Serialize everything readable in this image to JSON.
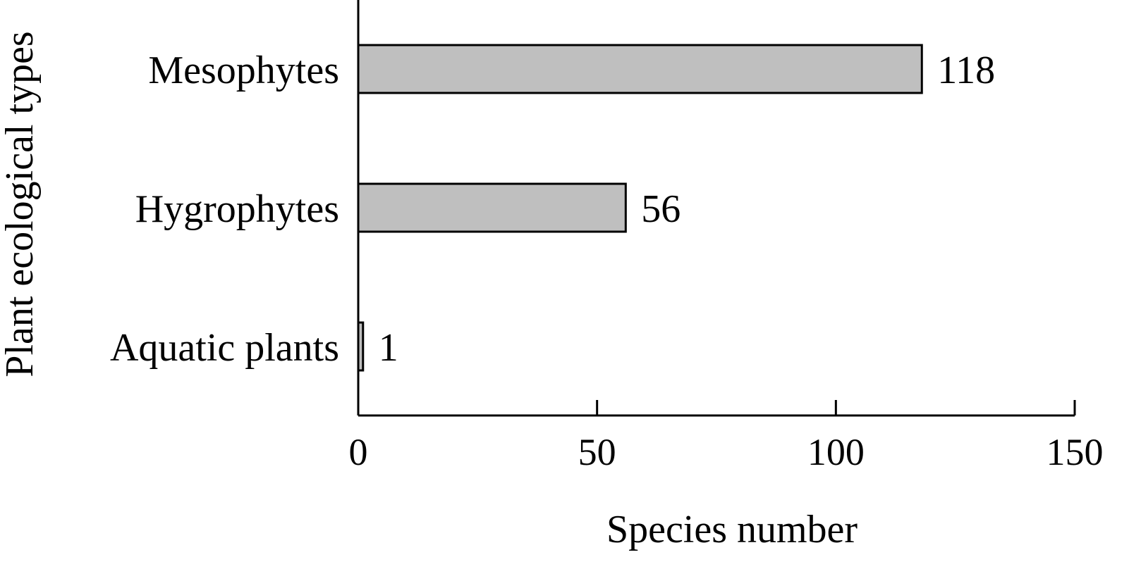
{
  "chart_data": {
    "type": "bar",
    "orientation": "horizontal",
    "categories": [
      "Mesophytes",
      "Hygrophytes",
      "Aquatic plants"
    ],
    "values": [
      118,
      56,
      1
    ],
    "value_labels": [
      "118",
      "56",
      "1"
    ],
    "xlabel": "Species number",
    "ylabel": "Plant ecological types",
    "xlim": [
      0,
      150
    ],
    "xticks": [
      0,
      50,
      100,
      150
    ],
    "xtick_labels": [
      "0",
      "50",
      "100",
      "150"
    ],
    "bar_color": "#bfbfbf",
    "bar_edge_color": "#000000",
    "grid": false,
    "legend": "none"
  }
}
